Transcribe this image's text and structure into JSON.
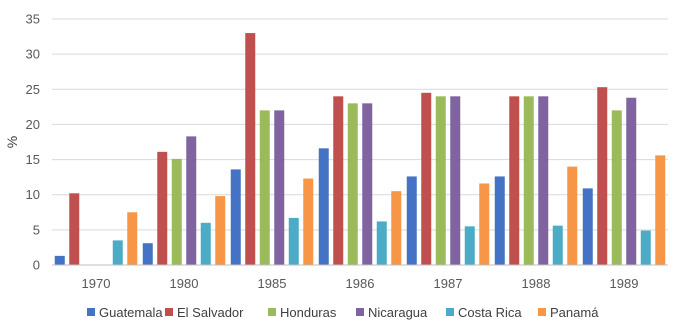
{
  "chart_data": {
    "type": "bar",
    "categories": [
      "1970",
      "1980",
      "1985",
      "1986",
      "1987",
      "1988",
      "1989"
    ],
    "ylabel": "%",
    "ylim": [
      0,
      35
    ],
    "yticks": [
      0,
      5,
      10,
      15,
      20,
      25,
      30,
      35
    ],
    "grid": true,
    "legend_position": "bottom",
    "series": [
      {
        "name": "Guatemala",
        "color": "#4472c4",
        "values": [
          1.3,
          3.1,
          13.6,
          16.6,
          12.6,
          12.6,
          10.9
        ]
      },
      {
        "name": "El Salvador",
        "color": "#c0504d",
        "values": [
          10.2,
          16.1,
          33.0,
          24.0,
          24.5,
          24.0,
          25.3
        ]
      },
      {
        "name": "Honduras",
        "color": "#9bbb59",
        "values": [
          null,
          15.1,
          22.0,
          23.0,
          24.0,
          24.0,
          22.0
        ]
      },
      {
        "name": "Nicaragua",
        "color": "#8064a2",
        "values": [
          null,
          18.3,
          22.0,
          23.0,
          24.0,
          24.0,
          23.8
        ]
      },
      {
        "name": "Costa Rica",
        "color": "#4bacc6",
        "values": [
          3.5,
          6.0,
          6.7,
          6.2,
          5.5,
          5.6,
          4.9
        ]
      },
      {
        "name": "Panamá",
        "color": "#f79646",
        "values": [
          7.5,
          9.8,
          12.3,
          10.5,
          11.6,
          14.0,
          15.6
        ]
      }
    ]
  }
}
